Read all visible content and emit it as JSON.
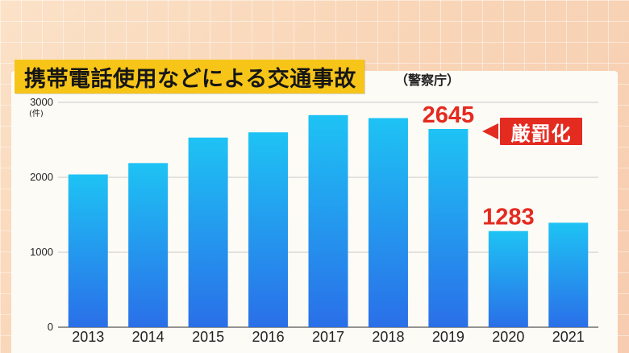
{
  "header": {
    "title": "携帯電話使用などによる交通事故",
    "source": "（警察庁）"
  },
  "badge_label": "厳罰化",
  "colors": {
    "bar_top": "#1ec3f4",
    "bar_bottom": "#2a6fe8",
    "title_bg": "#f7c518",
    "accent": "#e42b20"
  },
  "chart_data": {
    "type": "bar",
    "title": "携帯電話使用などによる交通事故",
    "ylabel": "(件)",
    "categories": [
      "2013",
      "2014",
      "2015",
      "2016",
      "2017",
      "2018",
      "2019",
      "2020",
      "2021"
    ],
    "values": [
      2038,
      2190,
      2530,
      2600,
      2830,
      2790,
      2645,
      1283,
      1394
    ],
    "ylim": [
      0,
      3000
    ],
    "yticks": [
      0,
      1000,
      2000,
      3000
    ],
    "grid": true,
    "data_labels": [
      {
        "category": "2019",
        "text": "2645"
      },
      {
        "category": "2020",
        "text": "1283"
      }
    ]
  }
}
